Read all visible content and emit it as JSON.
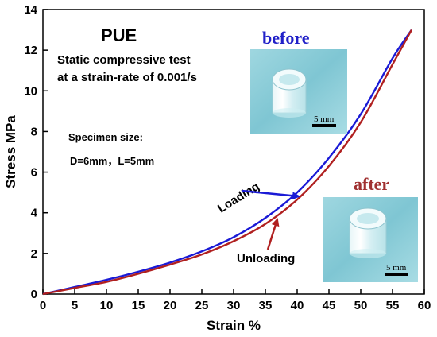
{
  "chart_data": {
    "type": "line",
    "xlabel": "Strain %",
    "ylabel": "Stress MPa",
    "xlim": [
      0,
      60
    ],
    "ylim": [
      0,
      14
    ],
    "x_ticks": [
      0,
      5,
      10,
      15,
      20,
      25,
      30,
      35,
      40,
      45,
      50,
      55,
      60
    ],
    "y_ticks": [
      0,
      2,
      4,
      6,
      8,
      10,
      12,
      14
    ],
    "grid": false,
    "legend": "none",
    "series": [
      {
        "name": "Loading",
        "color": "#1a1ad6",
        "x": [
          0,
          5,
          10,
          15,
          20,
          25,
          30,
          35,
          40,
          45,
          50,
          55,
          58
        ],
        "y": [
          0,
          0.35,
          0.7,
          1.1,
          1.55,
          2.1,
          2.8,
          3.75,
          5.0,
          6.7,
          8.85,
          11.6,
          13.0
        ]
      },
      {
        "name": "Unloading",
        "color": "#b02020",
        "x": [
          58,
          55,
          50,
          45,
          40,
          35,
          30,
          25,
          20,
          15,
          10,
          5,
          0
        ],
        "y": [
          13.0,
          11.3,
          8.45,
          6.3,
          4.65,
          3.45,
          2.6,
          1.95,
          1.45,
          1.0,
          0.6,
          0.3,
          0
        ]
      }
    ],
    "annotations": {
      "material": "PUE",
      "test_line1": "Static compressive test",
      "test_line2": "at a strain-rate of 0.001/s",
      "specimen_title": "Specimen size:",
      "specimen_dims": "D=6mm，L=5mm",
      "loading_label": "Loading",
      "unloading_label": "Unloading"
    },
    "photos": {
      "before_label": "before",
      "after_label": "after",
      "before_color": "#2020c8",
      "after_color": "#a03030",
      "scale_before": "5 mm",
      "scale_after": "5 mm"
    }
  }
}
